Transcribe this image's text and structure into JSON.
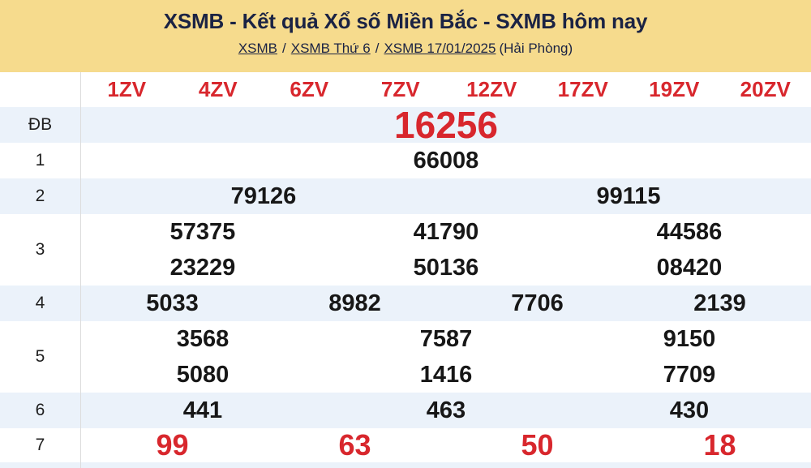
{
  "colors": {
    "banner_bg": "#f6db8d",
    "accent_red": "#d8272d",
    "stripe_blue": "#ebf2fa",
    "navy_text": "#1b2344",
    "number_black": "#171717",
    "divider_gray": "#dcdcdc"
  },
  "banner": {
    "title": "XSMB - Kết quả Xổ số Miền Bắc - SXMB hôm nay",
    "breadcrumb": {
      "links": [
        "XSMB",
        "XSMB Thứ 6",
        "XSMB 17/01/2025"
      ],
      "separator": "/",
      "suffix": "(Hải Phòng)"
    }
  },
  "table": {
    "columns": [
      "1ZV",
      "4ZV",
      "6ZV",
      "7ZV",
      "12ZV",
      "17ZV",
      "19ZV",
      "20ZV"
    ],
    "rows": [
      {
        "label": "ĐB",
        "special": true,
        "lines": [
          [
            "16256"
          ]
        ]
      },
      {
        "label": "1",
        "lines": [
          [
            "66008"
          ]
        ]
      },
      {
        "label": "2",
        "lines": [
          [
            "79126",
            "99115"
          ]
        ]
      },
      {
        "label": "3",
        "lines": [
          [
            "57375",
            "41790",
            "44586"
          ],
          [
            "23229",
            "50136",
            "08420"
          ]
        ]
      },
      {
        "label": "4",
        "lines": [
          [
            "5033",
            "8982",
            "7706",
            "2139"
          ]
        ]
      },
      {
        "label": "5",
        "lines": [
          [
            "3568",
            "7587",
            "9150"
          ],
          [
            "5080",
            "1416",
            "7709"
          ]
        ]
      },
      {
        "label": "6",
        "lines": [
          [
            "441",
            "463",
            "430"
          ]
        ]
      },
      {
        "label": "7",
        "red": true,
        "lines": [
          [
            "99",
            "63",
            "50",
            "18"
          ]
        ]
      }
    ]
  }
}
